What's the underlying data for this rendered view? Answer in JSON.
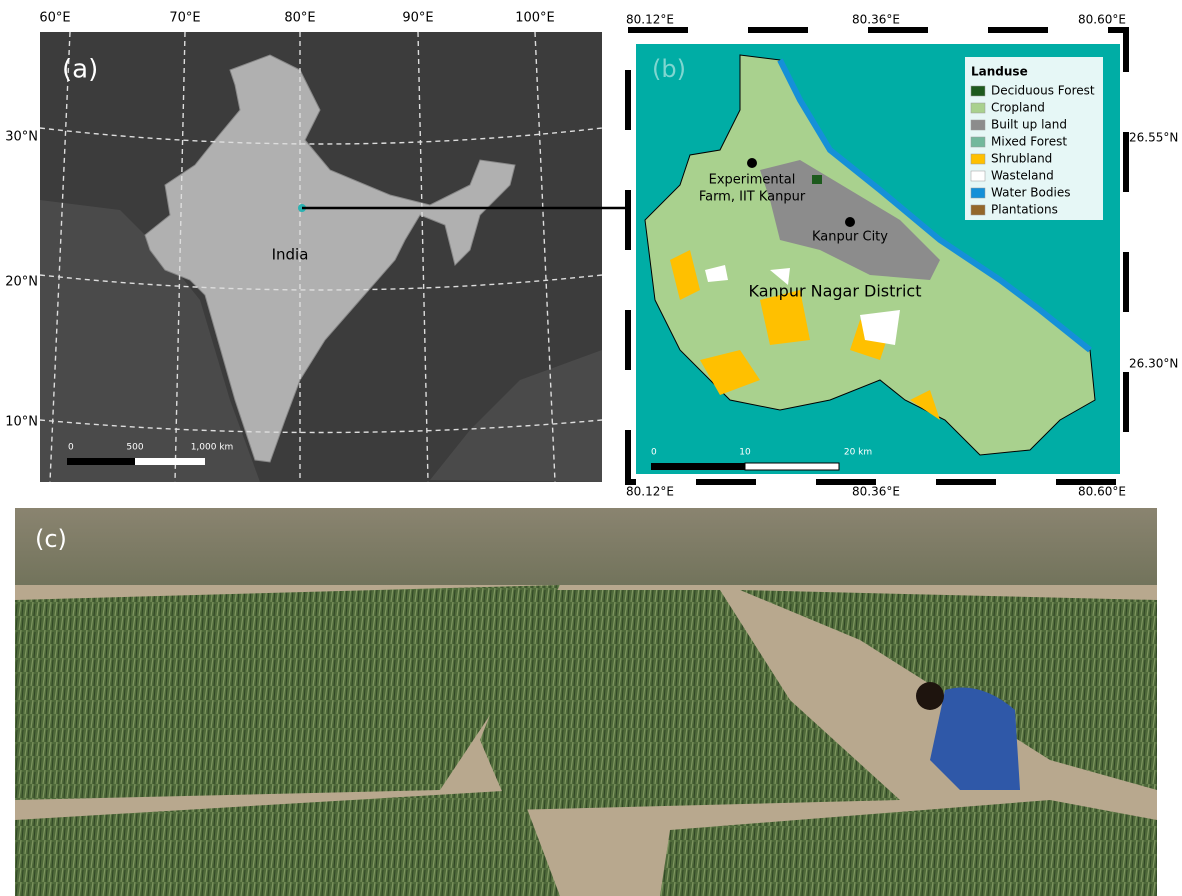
{
  "panel_a": {
    "label": "(a)",
    "lon_labels": [
      "60°E",
      "70°E",
      "80°E",
      "90°E",
      "100°E"
    ],
    "lat_labels": [
      "30°N",
      "20°N",
      "10°N"
    ],
    "country": "India",
    "scale": [
      "0",
      "500",
      "1,000 km"
    ]
  },
  "panel_b": {
    "label": "(b)",
    "top_labels": [
      "80.12°E",
      "80.36°E",
      "80.60°E"
    ],
    "bottom_labels": [
      "80.12°E",
      "80.36°E",
      "80.60°E"
    ],
    "lat_labels": [
      "26.55°N",
      "26.30°N"
    ],
    "legend": {
      "title": "Landuse",
      "items": [
        {
          "name": "Deciduous Forest",
          "color": "#1d5a1d"
        },
        {
          "name": "Cropland",
          "color": "#a9d18e"
        },
        {
          "name": "Built up land",
          "color": "#8c8c8c"
        },
        {
          "name": "Mixed Forest",
          "color": "#72b89c"
        },
        {
          "name": "Shrubland",
          "color": "#ffc000"
        },
        {
          "name": "Wasteland",
          "color": "#ffffff"
        },
        {
          "name": "Water Bodies",
          "color": "#1590d8"
        },
        {
          "name": "Plantations",
          "color": "#94672a"
        }
      ]
    },
    "site_label": [
      "Experimental",
      "Farm, IIT Kanpur"
    ],
    "city": "Kanpur City",
    "district": "Kanpur Nagar District",
    "scale": [
      "0",
      "10",
      "20 km"
    ]
  },
  "panel_c": {
    "label": "(c)"
  }
}
